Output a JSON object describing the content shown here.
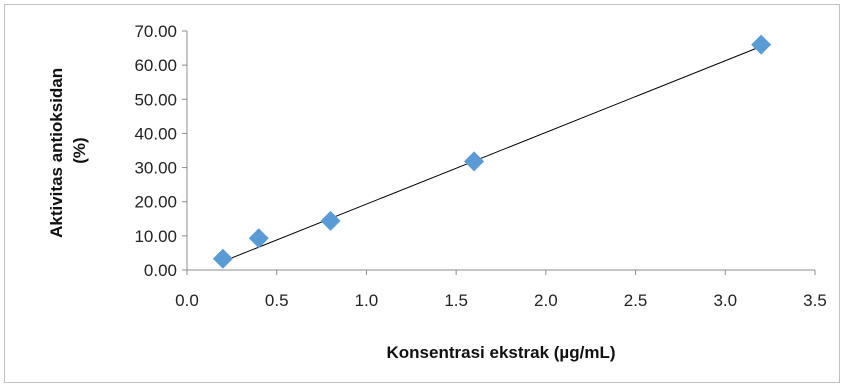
{
  "chart_data": {
    "type": "scatter",
    "title": "",
    "xlabel": "Konsentrasi ekstrak (µg/mL)",
    "ylabel_lines": [
      "Aktivitas antioksidan",
      "(%)"
    ],
    "xlim": [
      0,
      3.5
    ],
    "ylim": [
      0,
      70
    ],
    "x_ticks": [
      "0.0",
      "0.5",
      "1.0",
      "1.5",
      "2.0",
      "2.5",
      "3.0",
      "3.5"
    ],
    "y_ticks": [
      "0.00",
      "10.00",
      "20.00",
      "30.00",
      "40.00",
      "50.00",
      "60.00",
      "70.00"
    ],
    "grid": false,
    "legend": "none",
    "series": [
      {
        "marker": "diamond",
        "color": "#5b9bd5",
        "points": [
          {
            "x": 0.2,
            "y": 3.3
          },
          {
            "x": 0.4,
            "y": 9.3
          },
          {
            "x": 0.8,
            "y": 14.4
          },
          {
            "x": 1.6,
            "y": 31.8
          },
          {
            "x": 3.2,
            "y": 66.0
          }
        ]
      }
    ],
    "trendline": {
      "type": "linear",
      "color": "#000000",
      "from": {
        "x": 0.2,
        "y": 2.5
      },
      "to": {
        "x": 3.2,
        "y": 65.5
      }
    }
  }
}
